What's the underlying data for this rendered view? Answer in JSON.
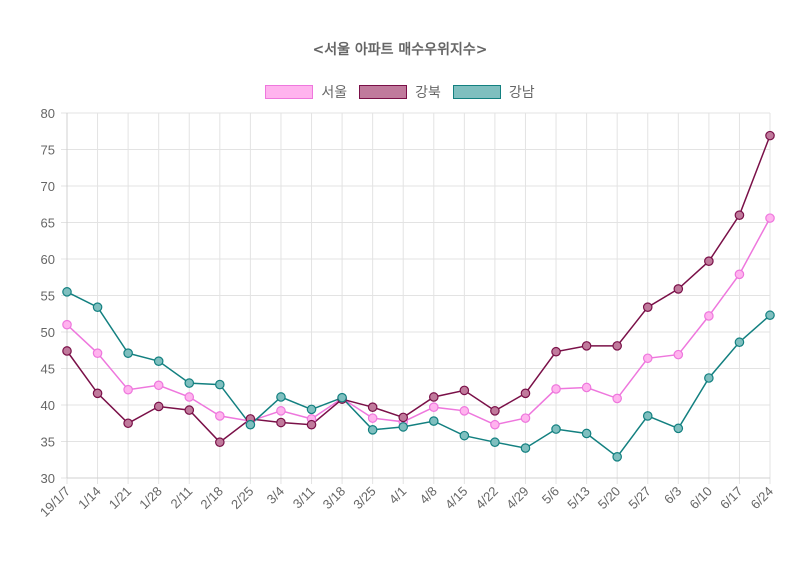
{
  "chart_data": {
    "type": "line",
    "title": "<서울 아파트 매수우위지수>",
    "xlabel": "",
    "ylabel": "",
    "ylim": [
      30,
      80
    ],
    "yticks": [
      80,
      75,
      70,
      65,
      60,
      55,
      50,
      45,
      40,
      35,
      30
    ],
    "grid": true,
    "legend_position": "top",
    "categories": [
      "19/1/7",
      "1/14",
      "1/21",
      "1/28",
      "2/11",
      "2/18",
      "2/25",
      "3/4",
      "3/11",
      "3/18",
      "3/25",
      "4/1",
      "4/8",
      "4/15",
      "4/22",
      "4/29",
      "5/6",
      "5/13",
      "5/20",
      "5/27",
      "6/3",
      "6/10",
      "6/17",
      "6/24"
    ],
    "series": [
      {
        "name": "서울",
        "line_color": "#ee77dd",
        "fill_color": "#ffb3ee",
        "values": [
          51.0,
          47.1,
          42.1,
          42.7,
          41.1,
          38.5,
          37.8,
          39.2,
          38.1,
          40.9,
          38.2,
          37.7,
          39.7,
          39.2,
          37.3,
          38.2,
          42.2,
          42.4,
          40.9,
          46.4,
          46.9,
          52.2,
          57.9,
          65.6
        ]
      },
      {
        "name": "강북",
        "line_color": "#7a1048",
        "fill_color": "#c07a9c",
        "values": [
          47.4,
          41.6,
          37.5,
          39.8,
          39.3,
          34.9,
          38.1,
          37.6,
          37.3,
          40.8,
          39.7,
          38.3,
          41.1,
          42.0,
          39.2,
          41.6,
          47.3,
          48.1,
          48.1,
          53.4,
          55.9,
          59.7,
          66.0,
          76.9
        ]
      },
      {
        "name": "강남",
        "line_color": "#138080",
        "fill_color": "#7fbfbf",
        "values": [
          55.5,
          53.4,
          47.1,
          46.0,
          43.0,
          42.8,
          37.3,
          41.1,
          39.4,
          41.0,
          36.6,
          37.0,
          37.8,
          35.8,
          34.9,
          34.1,
          36.7,
          36.1,
          32.9,
          38.5,
          36.8,
          43.7,
          48.6,
          52.3
        ]
      }
    ]
  }
}
